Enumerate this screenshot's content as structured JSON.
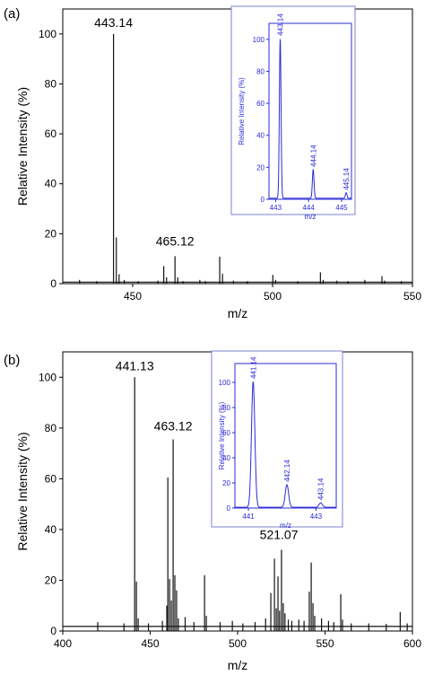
{
  "chart_data": [
    {
      "type": "line",
      "panel_label": "(a)",
      "xlabel": "m/z",
      "ylabel": "Relative Intensity (%)",
      "xlim": [
        425,
        550
      ],
      "ylim": [
        0,
        110
      ],
      "xticks": [
        450,
        500,
        550
      ],
      "yticks": [
        0,
        20,
        40,
        60,
        80,
        100
      ],
      "baseline": 0.6,
      "peaks": [
        {
          "x": 431.0,
          "y": 1.5
        },
        {
          "x": 437.1,
          "y": 1.0
        },
        {
          "x": 443.14,
          "y": 100
        },
        {
          "x": 444.14,
          "y": 18.5
        },
        {
          "x": 445.14,
          "y": 3.8
        },
        {
          "x": 447.0,
          "y": 1.5
        },
        {
          "x": 452.0,
          "y": 1.0
        },
        {
          "x": 459.0,
          "y": 1.2
        },
        {
          "x": 461.1,
          "y": 7.0
        },
        {
          "x": 462.1,
          "y": 2.5
        },
        {
          "x": 465.12,
          "y": 11.0
        },
        {
          "x": 466.1,
          "y": 2.5
        },
        {
          "x": 468.0,
          "y": 1.0
        },
        {
          "x": 474.0,
          "y": 1.5
        },
        {
          "x": 476.0,
          "y": 1.0
        },
        {
          "x": 481.1,
          "y": 10.8
        },
        {
          "x": 482.1,
          "y": 4.0
        },
        {
          "x": 486.0,
          "y": 1.2
        },
        {
          "x": 491.0,
          "y": 1.0
        },
        {
          "x": 500.1,
          "y": 3.5
        },
        {
          "x": 501.1,
          "y": 1.5
        },
        {
          "x": 509.0,
          "y": 1.0
        },
        {
          "x": 517.1,
          "y": 4.5
        },
        {
          "x": 518.1,
          "y": 1.5
        },
        {
          "x": 523.0,
          "y": 1.2
        },
        {
          "x": 527.0,
          "y": 1.0
        },
        {
          "x": 533.0,
          "y": 1.5
        },
        {
          "x": 539.1,
          "y": 3.0
        },
        {
          "x": 540.1,
          "y": 1.2
        },
        {
          "x": 546.0,
          "y": 1.0
        }
      ],
      "annotations": [
        {
          "text": "443.14",
          "x": 443.14,
          "y": 100
        },
        {
          "text": "465.12",
          "x": 465.12,
          "y": 11.0
        }
      ],
      "inset": {
        "xlabel": "m/z",
        "ylabel": "Relative Intensity (%)",
        "xlim": [
          442.8,
          445.3
        ],
        "ylim": [
          0,
          110
        ],
        "xticks": [
          443,
          444,
          445
        ],
        "yticks": [
          0,
          20,
          40,
          60,
          80,
          100
        ],
        "peaks": [
          {
            "x": 443.14,
            "y": 100,
            "w": 0.025
          },
          {
            "x": 444.14,
            "y": 18,
            "w": 0.025
          },
          {
            "x": 445.14,
            "y": 3.5,
            "w": 0.025
          }
        ],
        "annotations": [
          {
            "text": "443.14",
            "x": 443.14,
            "y": 100
          },
          {
            "text": "444.14",
            "x": 444.14,
            "y": 18
          },
          {
            "text": "445.14",
            "x": 445.14,
            "y": 3.5
          }
        ]
      }
    },
    {
      "type": "line",
      "panel_label": "(b)",
      "xlabel": "m/z",
      "ylabel": "Relative Intensity (%)",
      "xlim": [
        400,
        600
      ],
      "ylim": [
        0,
        110
      ],
      "xticks": [
        400,
        450,
        500,
        550,
        600
      ],
      "yticks": [
        0,
        20,
        40,
        60,
        80,
        100
      ],
      "baseline": 1.8,
      "peaks": [
        {
          "x": 420.0,
          "y": 3.5
        },
        {
          "x": 435.0,
          "y": 3.0
        },
        {
          "x": 441.13,
          "y": 100
        },
        {
          "x": 442.13,
          "y": 19.5
        },
        {
          "x": 443.13,
          "y": 5.0
        },
        {
          "x": 449.0,
          "y": 3.0
        },
        {
          "x": 457.0,
          "y": 4.0
        },
        {
          "x": 459.5,
          "y": 10.0
        },
        {
          "x": 460.1,
          "y": 60.5
        },
        {
          "x": 461.1,
          "y": 20.5
        },
        {
          "x": 462.1,
          "y": 12.0
        },
        {
          "x": 463.12,
          "y": 75.5
        },
        {
          "x": 464.1,
          "y": 22.0
        },
        {
          "x": 465.1,
          "y": 16.0
        },
        {
          "x": 466.1,
          "y": 5.0
        },
        {
          "x": 470.0,
          "y": 5.5
        },
        {
          "x": 475.0,
          "y": 3.5
        },
        {
          "x": 481.1,
          "y": 22.0
        },
        {
          "x": 482.1,
          "y": 6.0
        },
        {
          "x": 490.0,
          "y": 3.5
        },
        {
          "x": 497.0,
          "y": 4.0
        },
        {
          "x": 503.0,
          "y": 3.0
        },
        {
          "x": 510.0,
          "y": 3.5
        },
        {
          "x": 516.0,
          "y": 5.0
        },
        {
          "x": 519.0,
          "y": 15.0
        },
        {
          "x": 521.07,
          "y": 28.5
        },
        {
          "x": 522.1,
          "y": 9.0
        },
        {
          "x": 523.1,
          "y": 21.5
        },
        {
          "x": 524.0,
          "y": 8.0
        },
        {
          "x": 525.1,
          "y": 32.0
        },
        {
          "x": 526.1,
          "y": 11.0
        },
        {
          "x": 527.1,
          "y": 7.0
        },
        {
          "x": 529.0,
          "y": 4.5
        },
        {
          "x": 531.0,
          "y": 4.0
        },
        {
          "x": 535.0,
          "y": 4.5
        },
        {
          "x": 538.0,
          "y": 4.0
        },
        {
          "x": 541.0,
          "y": 15.5
        },
        {
          "x": 542.1,
          "y": 27.0
        },
        {
          "x": 543.1,
          "y": 11.0
        },
        {
          "x": 544.1,
          "y": 6.0
        },
        {
          "x": 548.0,
          "y": 5.0
        },
        {
          "x": 552.0,
          "y": 4.0
        },
        {
          "x": 555.0,
          "y": 3.5
        },
        {
          "x": 559.0,
          "y": 14.5
        },
        {
          "x": 560.0,
          "y": 4.5
        },
        {
          "x": 565.0,
          "y": 3.0
        },
        {
          "x": 575.0,
          "y": 3.0
        },
        {
          "x": 585.0,
          "y": 2.8
        },
        {
          "x": 593.0,
          "y": 7.5
        },
        {
          "x": 597.0,
          "y": 3.0
        }
      ],
      "annotations": [
        {
          "text": "441.13",
          "x": 441.13,
          "y": 100
        },
        {
          "text": "463.12",
          "x": 463.12,
          "y": 75.5
        },
        {
          "text": "521.07",
          "x": 521.07,
          "y": 32.0
        }
      ],
      "inset": {
        "xlabel": "m/z",
        "ylabel": "Relative Intensity (%)",
        "xlim": [
          440.6,
          443.6
        ],
        "ylim": [
          0,
          115
        ],
        "xticks": [
          441,
          443
        ],
        "yticks": [
          0,
          20,
          40,
          60,
          80,
          100
        ],
        "peaks": [
          {
            "x": 441.14,
            "y": 100,
            "w": 0.05
          },
          {
            "x": 442.14,
            "y": 18,
            "w": 0.05
          },
          {
            "x": 443.14,
            "y": 3.5,
            "w": 0.05
          }
        ],
        "annotations": [
          {
            "text": "441.14",
            "x": 441.14,
            "y": 100
          },
          {
            "text": "442.14",
            "x": 442.14,
            "y": 18
          },
          {
            "text": "443.14",
            "x": 443.14,
            "y": 3.5
          }
        ]
      }
    }
  ]
}
